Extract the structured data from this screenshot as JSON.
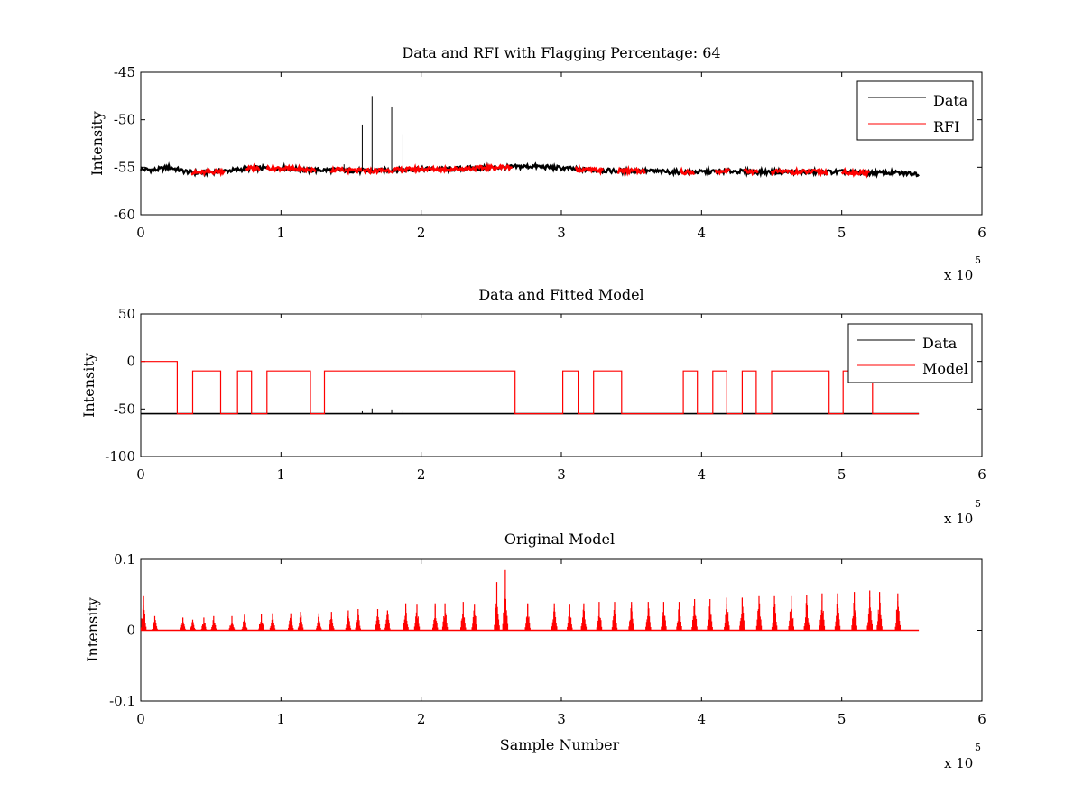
{
  "chart_data": [
    {
      "type": "line",
      "title": "Data and RFI with Flagging Percentage: 64",
      "xlabel": "",
      "ylabel": "Intensity",
      "xlim": [
        0,
        6
      ],
      "ylim": [
        -60,
        -45
      ],
      "x_multiplier_label": "x 10",
      "x_multiplier_exponent": "5",
      "xticks": [
        "0",
        "1",
        "2",
        "3",
        "4",
        "5",
        "6"
      ],
      "yticks": [
        "-60",
        "-55",
        "-50",
        "-45"
      ],
      "legend": {
        "placement": "top-right",
        "entries": [
          "Data",
          "RFI"
        ]
      },
      "series": [
        {
          "name": "Data",
          "color": "#000000",
          "x": [
            0,
            0.1,
            0.2,
            0.3,
            0.4,
            0.6,
            0.8,
            1.0,
            1.2,
            1.4,
            1.6,
            1.8,
            2.0,
            2.2,
            2.4,
            2.6,
            2.8,
            3.0,
            3.2,
            3.4,
            3.6,
            3.8,
            4.0,
            4.2,
            4.4,
            4.6,
            4.8,
            5.0,
            5.2,
            5.4,
            5.55
          ],
          "y": [
            -55.2,
            -55.3,
            -55.0,
            -55.4,
            -55.6,
            -55.4,
            -55.1,
            -55.1,
            -55.3,
            -55.3,
            -55.4,
            -55.3,
            -55.2,
            -55.2,
            -55.1,
            -55.0,
            -54.9,
            -55.1,
            -55.3,
            -55.4,
            -55.4,
            -55.5,
            -55.5,
            -55.4,
            -55.5,
            -55.5,
            -55.5,
            -55.5,
            -55.6,
            -55.6,
            -55.7
          ]
        },
        {
          "name": "RFI",
          "color": "#ff0000",
          "flagged_ranges": [
            [
              0.36,
              0.6
            ],
            [
              0.75,
              0.85
            ],
            [
              0.9,
              1.25
            ],
            [
              1.35,
              2.65
            ],
            [
              3.1,
              3.3
            ],
            [
              3.4,
              3.6
            ],
            [
              3.85,
              3.95
            ],
            [
              4.1,
              4.2
            ],
            [
              4.3,
              4.4
            ],
            [
              4.5,
              4.9
            ],
            [
              5.0,
              5.2
            ]
          ]
        }
      ],
      "spikes": [
        {
          "x": 1.58,
          "y": -50.5
        },
        {
          "x": 1.65,
          "y": -47.5
        },
        {
          "x": 1.79,
          "y": -48.7
        },
        {
          "x": 1.87,
          "y": -51.6
        },
        {
          "x": 1.45,
          "y": -54.7
        }
      ]
    },
    {
      "type": "line",
      "title": "Data and Fitted Model",
      "xlabel": "",
      "ylabel": "Intensity",
      "xlim": [
        0,
        6
      ],
      "ylim": [
        -100,
        50
      ],
      "x_multiplier_label": "x 10",
      "x_multiplier_exponent": "5",
      "xticks": [
        "0",
        "1",
        "2",
        "3",
        "4",
        "5",
        "6"
      ],
      "yticks": [
        "-100",
        "-50",
        "0",
        "50"
      ],
      "legend": {
        "placement": "top-right",
        "entries": [
          "Data",
          "Model"
        ]
      },
      "series": [
        {
          "name": "Data",
          "color": "#000000",
          "baseline": -55,
          "x_range": [
            0,
            5.55
          ]
        },
        {
          "name": "Model",
          "color": "#ff0000",
          "steps": [
            [
              0,
              0
            ],
            [
              0.26,
              0
            ],
            [
              0.26,
              -55
            ],
            [
              0.37,
              -55
            ],
            [
              0.37,
              -10
            ],
            [
              0.57,
              -10
            ],
            [
              0.57,
              -55
            ],
            [
              0.69,
              -55
            ],
            [
              0.69,
              -10
            ],
            [
              0.79,
              -10
            ],
            [
              0.79,
              -55
            ],
            [
              0.9,
              -55
            ],
            [
              0.9,
              -10
            ],
            [
              1.21,
              -10
            ],
            [
              1.21,
              -55
            ],
            [
              1.31,
              -55
            ],
            [
              1.31,
              -10
            ],
            [
              2.67,
              -10
            ],
            [
              2.67,
              -55
            ],
            [
              3.01,
              -55
            ],
            [
              3.01,
              -10
            ],
            [
              3.12,
              -10
            ],
            [
              3.12,
              -55
            ],
            [
              3.23,
              -55
            ],
            [
              3.23,
              -10
            ],
            [
              3.43,
              -10
            ],
            [
              3.43,
              -55
            ],
            [
              3.87,
              -55
            ],
            [
              3.87,
              -10
            ],
            [
              3.97,
              -10
            ],
            [
              3.97,
              -55
            ],
            [
              4.08,
              -55
            ],
            [
              4.08,
              -10
            ],
            [
              4.18,
              -10
            ],
            [
              4.18,
              -55
            ],
            [
              4.29,
              -55
            ],
            [
              4.29,
              -10
            ],
            [
              4.39,
              -10
            ],
            [
              4.39,
              -55
            ],
            [
              4.5,
              -55
            ],
            [
              4.5,
              -10
            ],
            [
              4.91,
              -10
            ],
            [
              4.91,
              -55
            ],
            [
              5.01,
              -55
            ],
            [
              5.01,
              -10
            ],
            [
              5.22,
              -10
            ],
            [
              5.22,
              -55
            ],
            [
              5.55,
              -55
            ]
          ]
        }
      ],
      "spikes": [
        {
          "x": 1.58,
          "y": -51.5
        },
        {
          "x": 1.65,
          "y": -49.5
        },
        {
          "x": 1.79,
          "y": -50.5
        },
        {
          "x": 1.87,
          "y": -52.5
        }
      ]
    },
    {
      "type": "line",
      "title": "Original Model",
      "xlabel": "Sample Number",
      "ylabel": "Intensity",
      "xlim": [
        0,
        6
      ],
      "ylim": [
        -0.1,
        0.1
      ],
      "x_multiplier_label": "x 10",
      "x_multiplier_exponent": "5",
      "xticks": [
        "0",
        "1",
        "2",
        "3",
        "4",
        "5",
        "6"
      ],
      "yticks": [
        "-0.1",
        "0",
        "0.1"
      ],
      "series": [
        {
          "name": "Model",
          "color": "#ff0000",
          "baseline": 0,
          "x_range": [
            0,
            5.55
          ],
          "peaks": [
            {
              "x": 0.02,
              "y": 0.048
            },
            {
              "x": 0.1,
              "y": 0.02
            },
            {
              "x": 0.3,
              "y": 0.018
            },
            {
              "x": 0.37,
              "y": 0.015
            },
            {
              "x": 0.45,
              "y": 0.018
            },
            {
              "x": 0.52,
              "y": 0.02
            },
            {
              "x": 0.65,
              "y": 0.02
            },
            {
              "x": 0.74,
              "y": 0.022
            },
            {
              "x": 0.86,
              "y": 0.023
            },
            {
              "x": 0.94,
              "y": 0.024
            },
            {
              "x": 1.07,
              "y": 0.024
            },
            {
              "x": 1.14,
              "y": 0.026
            },
            {
              "x": 1.27,
              "y": 0.024
            },
            {
              "x": 1.36,
              "y": 0.026
            },
            {
              "x": 1.48,
              "y": 0.028
            },
            {
              "x": 1.55,
              "y": 0.03
            },
            {
              "x": 1.69,
              "y": 0.03
            },
            {
              "x": 1.76,
              "y": 0.028
            },
            {
              "x": 1.89,
              "y": 0.038
            },
            {
              "x": 1.97,
              "y": 0.036
            },
            {
              "x": 2.1,
              "y": 0.038
            },
            {
              "x": 2.17,
              "y": 0.038
            },
            {
              "x": 2.3,
              "y": 0.04
            },
            {
              "x": 2.38,
              "y": 0.036
            },
            {
              "x": 2.54,
              "y": 0.068
            },
            {
              "x": 2.6,
              "y": 0.085
            },
            {
              "x": 2.76,
              "y": 0.038
            },
            {
              "x": 2.95,
              "y": 0.038
            },
            {
              "x": 3.06,
              "y": 0.036
            },
            {
              "x": 3.16,
              "y": 0.038
            },
            {
              "x": 3.27,
              "y": 0.04
            },
            {
              "x": 3.38,
              "y": 0.04
            },
            {
              "x": 3.5,
              "y": 0.04
            },
            {
              "x": 3.62,
              "y": 0.04
            },
            {
              "x": 3.73,
              "y": 0.04
            },
            {
              "x": 3.84,
              "y": 0.04
            },
            {
              "x": 3.95,
              "y": 0.044
            },
            {
              "x": 4.06,
              "y": 0.044
            },
            {
              "x": 4.18,
              "y": 0.046
            },
            {
              "x": 4.29,
              "y": 0.046
            },
            {
              "x": 4.41,
              "y": 0.048
            },
            {
              "x": 4.52,
              "y": 0.048
            },
            {
              "x": 4.64,
              "y": 0.048
            },
            {
              "x": 4.75,
              "y": 0.05
            },
            {
              "x": 4.86,
              "y": 0.052
            },
            {
              "x": 4.97,
              "y": 0.052
            },
            {
              "x": 5.09,
              "y": 0.054
            },
            {
              "x": 5.2,
              "y": 0.056
            },
            {
              "x": 5.27,
              "y": 0.054
            },
            {
              "x": 5.4,
              "y": 0.052
            }
          ]
        }
      ]
    }
  ]
}
